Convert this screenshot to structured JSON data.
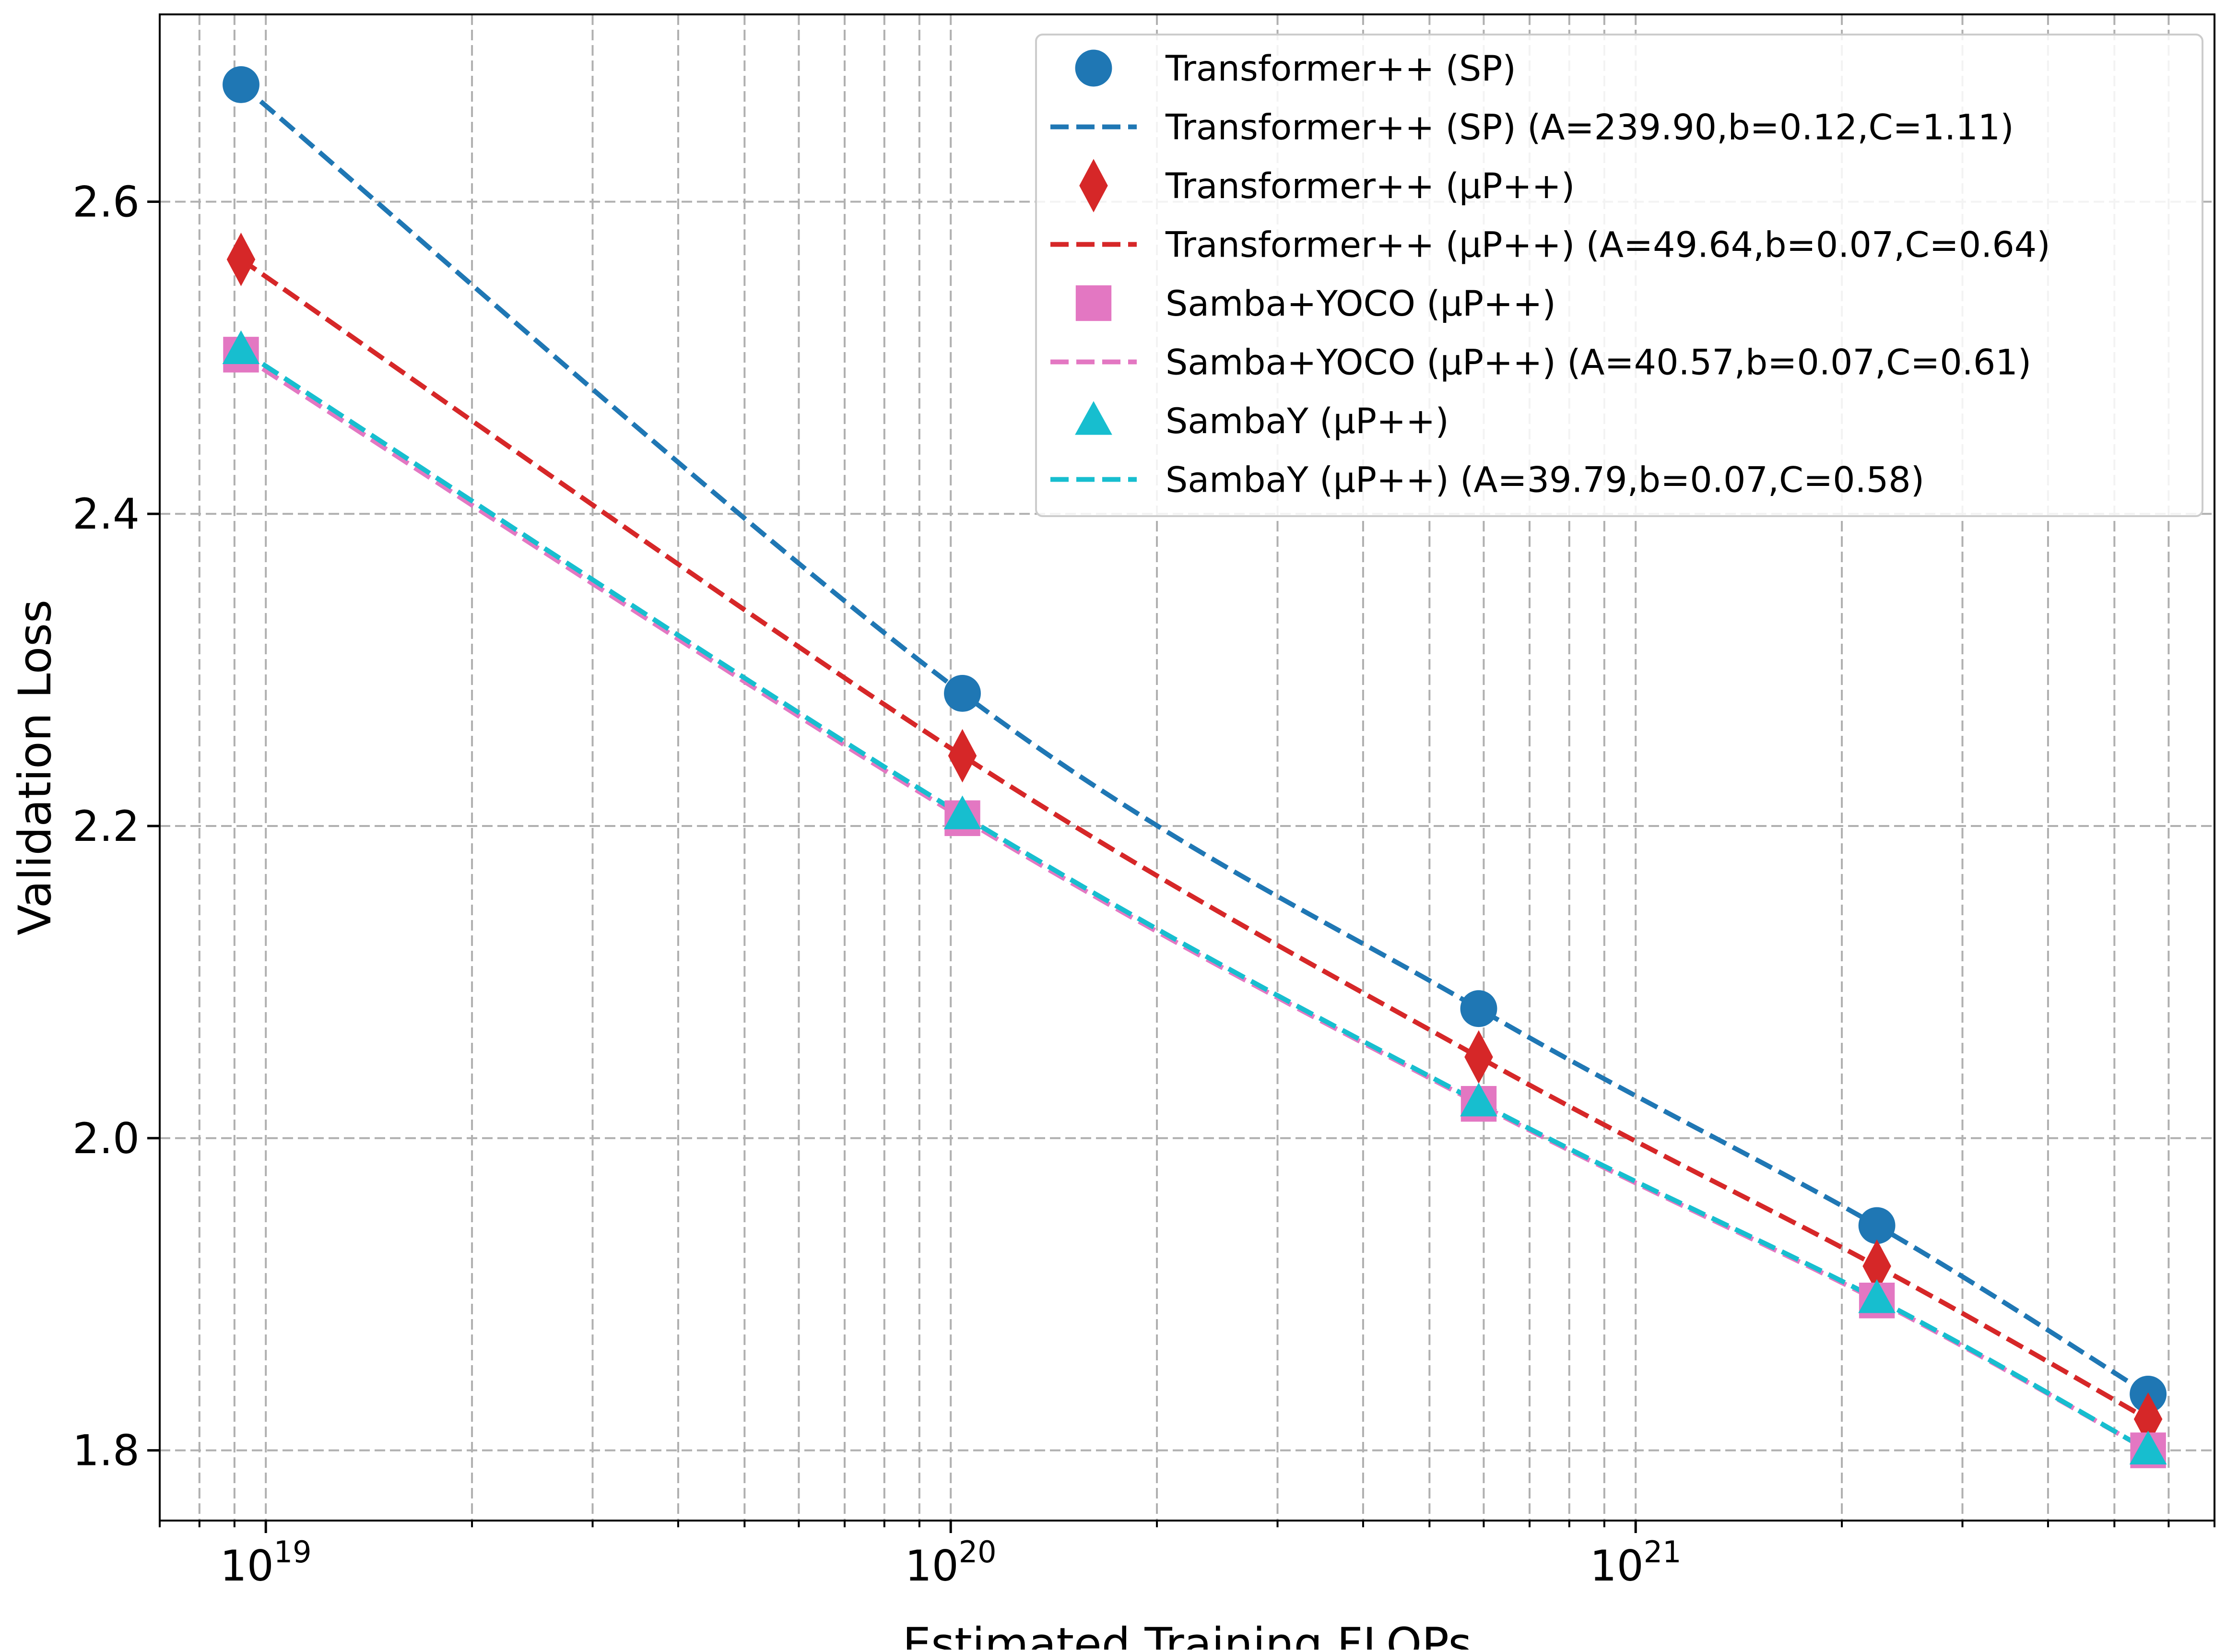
{
  "chart_data": {
    "type": "scatter",
    "title": "",
    "xlabel": "Estimated Training FLOPs",
    "ylabel": "Validation Loss",
    "xscale": "log",
    "xlim": [
      7e+18,
      7e+21
    ],
    "ylim": [
      1.755,
      2.72
    ],
    "grid": true,
    "legend_position": "top-right",
    "x_ticks": [
      {
        "value": 1e+19,
        "base": "10",
        "exp": "19"
      },
      {
        "value": 1e+20,
        "base": "10",
        "exp": "20"
      },
      {
        "value": 1e+21,
        "base": "10",
        "exp": "21"
      }
    ],
    "y_ticks": [
      {
        "value": 1.8,
        "label": "1.8"
      },
      {
        "value": 2.0,
        "label": "2.0"
      },
      {
        "value": 2.2,
        "label": "2.2"
      },
      {
        "value": 2.4,
        "label": "2.4"
      },
      {
        "value": 2.6,
        "label": "2.6"
      }
    ],
    "x": [
      9.2e+18,
      1.04e+20,
      5.9e+20,
      2.25e+21,
      5.6e+21
    ],
    "series": [
      {
        "name": "Transformer++ (SP)",
        "fit_label": "Transformer++ (SP) (A=239.90,b=0.12,C=1.11)",
        "color": "#1f77b4",
        "marker": "circle",
        "values": [
          2.675,
          2.285,
          2.083,
          1.944,
          1.836
        ]
      },
      {
        "name": "Transformer++ (μP++)",
        "fit_label": "Transformer++ (μP++) (A=49.64,b=0.07,C=0.64)",
        "color": "#d62728",
        "marker": "diamond",
        "values": [
          2.563,
          2.245,
          2.052,
          1.918,
          1.82
        ]
      },
      {
        "name": "Samba+YOCO (μP++)",
        "fit_label": "Samba+YOCO (μP++) (A=40.57,b=0.07,C=0.61)",
        "color": "#e377c2",
        "marker": "square",
        "values": [
          2.502,
          2.205,
          2.022,
          1.896,
          1.8
        ]
      },
      {
        "name": "SambaY (μP++)",
        "fit_label": "SambaY (μP++) (A=39.79,b=0.07,C=0.58)",
        "color": "#17becf",
        "marker": "triangle",
        "values": [
          2.505,
          2.207,
          2.023,
          1.897,
          1.8
        ]
      }
    ]
  }
}
